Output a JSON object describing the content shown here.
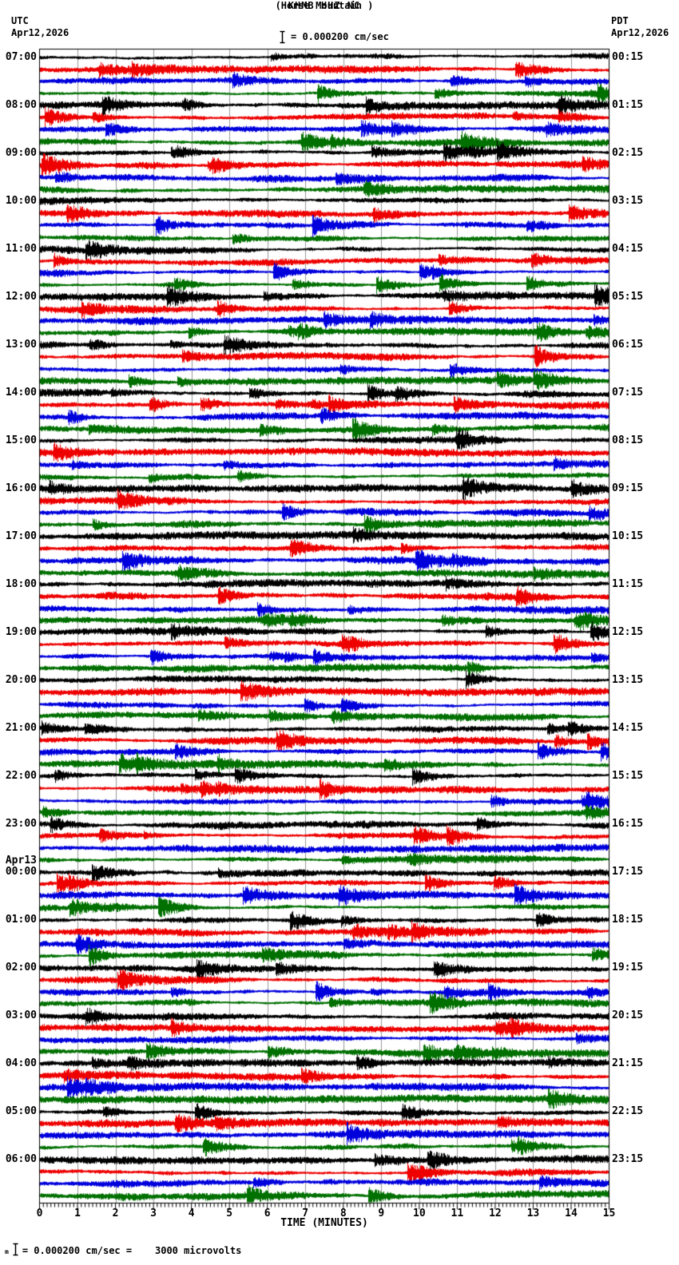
{
  "header": {
    "station_line": "KHMB HHZ NC",
    "location_line": "(Horse Mountain )",
    "scale_label": "= 0.000200 cm/sec",
    "left_timezone": "UTC",
    "left_date": "Apr12,2026",
    "right_timezone": "PDT",
    "right_date": "Apr12,2026"
  },
  "footer": {
    "glyph": "m",
    "scale_equation": "= 0.000200 cm/sec =    3000 microvolts"
  },
  "chart_data": {
    "type": "helicorder-seismogram",
    "station": "KHMB",
    "channel": "HHZ",
    "network": "NC",
    "station_name": "Horse Mountain",
    "amplitude_scale_label": "0.000200 cm/sec",
    "amplitude_scale_microvolts": "3000 microvolts",
    "minutes_per_line": 15,
    "lines_per_hour": 4,
    "num_hour_rows": 24,
    "num_traces": 96,
    "x_axis": {
      "label": "TIME (MINUTES)",
      "tick_labels": [
        "0",
        "1",
        "2",
        "3",
        "4",
        "5",
        "6",
        "7",
        "8",
        "9",
        "10",
        "11",
        "12",
        "13",
        "14",
        "15"
      ],
      "minor_ticks_per_minute": 10,
      "range_minutes": [
        0,
        15
      ]
    },
    "left_timezone": "UTC",
    "right_timezone": "PDT",
    "left_time_labels": [
      "07:00",
      "08:00",
      "09:00",
      "10:00",
      "11:00",
      "12:00",
      "13:00",
      "14:00",
      "15:00",
      "16:00",
      "17:00",
      "18:00",
      "19:00",
      "20:00",
      "21:00",
      "22:00",
      "23:00",
      "00:00",
      "01:00",
      "02:00",
      "03:00",
      "04:00",
      "05:00",
      "06:00"
    ],
    "right_time_labels": [
      "00:15",
      "01:15",
      "02:15",
      "03:15",
      "04:15",
      "05:15",
      "06:15",
      "07:15",
      "08:15",
      "09:15",
      "10:15",
      "11:15",
      "12:15",
      "13:15",
      "14:15",
      "15:15",
      "16:15",
      "17:15",
      "18:15",
      "19:15",
      "20:15",
      "21:15",
      "22:15",
      "23:15"
    ],
    "date_change": {
      "label": "Apr13",
      "above_left_label_index": 17
    },
    "trace_colors": [
      "#000000",
      "#ee0000",
      "#0000dd",
      "#007000"
    ],
    "grid_color": "#999999",
    "border_color": "#000000",
    "noise_seed": 1337
  }
}
